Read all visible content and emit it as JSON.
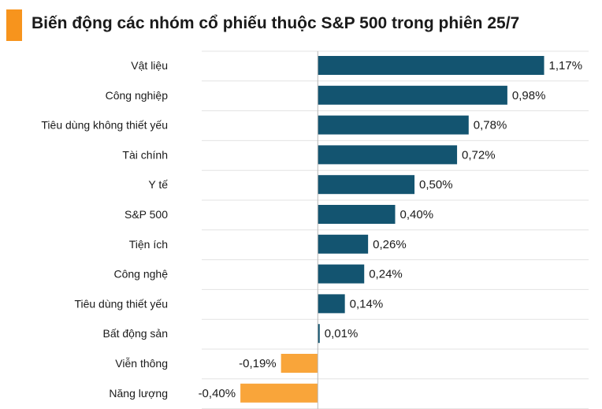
{
  "title": "Biến động các nhóm cổ phiếu thuộc S&P 500 trong phiên 25/7",
  "colors": {
    "accent": "#f7941d",
    "positive": "#135470",
    "negative": "#f9a53a",
    "grid": "#e3e3e3",
    "axis": "#b8b8b8"
  },
  "chart_data": {
    "type": "bar",
    "orientation": "horizontal",
    "title": "Biến động các nhóm cổ phiếu thuộc S&P 500 trong phiên 25/7",
    "categories": [
      "Vật liệu",
      "Công nghiệp",
      "Tiêu dùng không thiết yếu",
      "Tài chính",
      "Y tế",
      "S&P 500",
      "Tiện ích",
      "Công nghệ",
      "Tiêu dùng thiết yếu",
      "Bất động sản",
      "Viễn thông",
      "Năng lượng"
    ],
    "values": [
      1.17,
      0.98,
      0.78,
      0.72,
      0.5,
      0.4,
      0.26,
      0.24,
      0.14,
      0.01,
      -0.19,
      -0.4
    ],
    "labels": [
      "1,17%",
      "0,98%",
      "0,78%",
      "0,72%",
      "0,50%",
      "0,40%",
      "0,26%",
      "0,24%",
      "0,14%",
      "0,01%",
      "-0,19%",
      "-0,40%"
    ],
    "xlim": [
      -0.6,
      1.4
    ],
    "grid": true,
    "legend": "none"
  }
}
